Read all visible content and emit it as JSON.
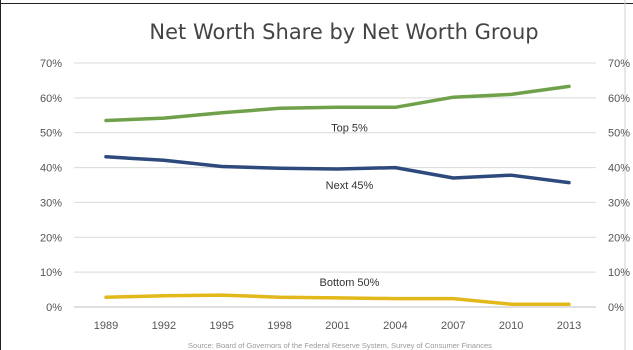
{
  "chart_data": {
    "type": "line",
    "title": "Net Worth Share by Net Worth Group",
    "source": "Source: Board of Governors of the Federal Reserve System, Survey of Consumer Finances",
    "x": [
      "1989",
      "1992",
      "1995",
      "1998",
      "2001",
      "2004",
      "2007",
      "2010",
      "2013"
    ],
    "ylim": [
      0,
      70
    ],
    "y_ticks": [
      "0%",
      "10%",
      "20%",
      "30%",
      "40%",
      "50%",
      "60%",
      "70%"
    ],
    "y_ticks_right": [
      "0%",
      "10%",
      "20%",
      "30%",
      "40%",
      "50%",
      "60%",
      "70%"
    ],
    "grid": true,
    "series": [
      {
        "name": "Top 5%",
        "color": "#6fa14a",
        "values": [
          53.5,
          54.2,
          55.7,
          57.0,
          57.3,
          57.3,
          60.2,
          61.0,
          63.3
        ]
      },
      {
        "name": "Next 45%",
        "color": "#2e4a7d",
        "values": [
          43.1,
          42.1,
          40.3,
          39.8,
          39.6,
          40.0,
          37.0,
          37.8,
          35.7
        ]
      },
      {
        "name": "Bottom 50%",
        "color": "#e2b81b",
        "values": [
          2.8,
          3.2,
          3.4,
          2.8,
          2.6,
          2.4,
          2.4,
          0.8,
          0.8
        ]
      }
    ]
  }
}
